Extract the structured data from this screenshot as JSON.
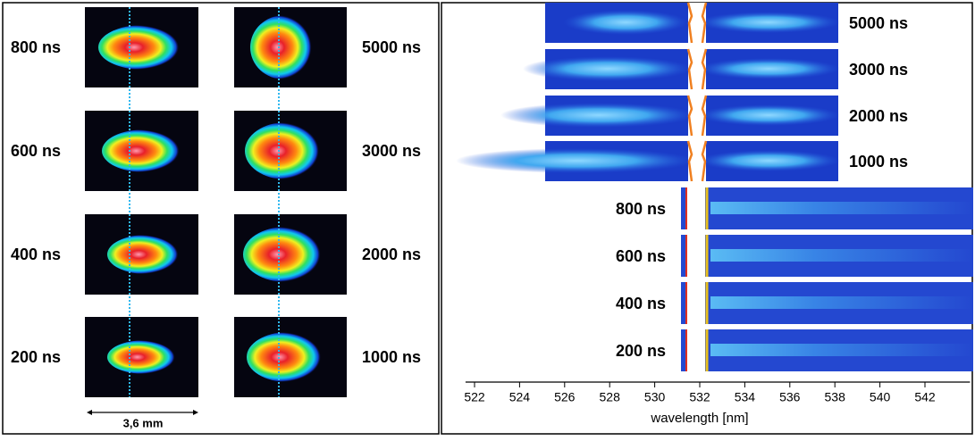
{
  "left_panel": {
    "left_labels": [
      "800 ns",
      "600 ns",
      "400 ns",
      "200 ns"
    ],
    "right_labels": [
      "5000 ns",
      "3000 ns",
      "2000 ns",
      "1000 ns"
    ],
    "scale_label": "3,6 mm"
  },
  "right_panel": {
    "upper_labels": [
      "5000 ns",
      "3000 ns",
      "2000 ns",
      "1000 ns"
    ],
    "lower_labels": [
      "800 ns",
      "600 ns",
      "400 ns",
      "200 ns"
    ],
    "axis": {
      "label": "wavelength [nm]",
      "xlim": [
        521.6,
        544
      ],
      "xticks": [
        522,
        524,
        526,
        528,
        530,
        532,
        534,
        536,
        538,
        540,
        542
      ]
    }
  }
}
